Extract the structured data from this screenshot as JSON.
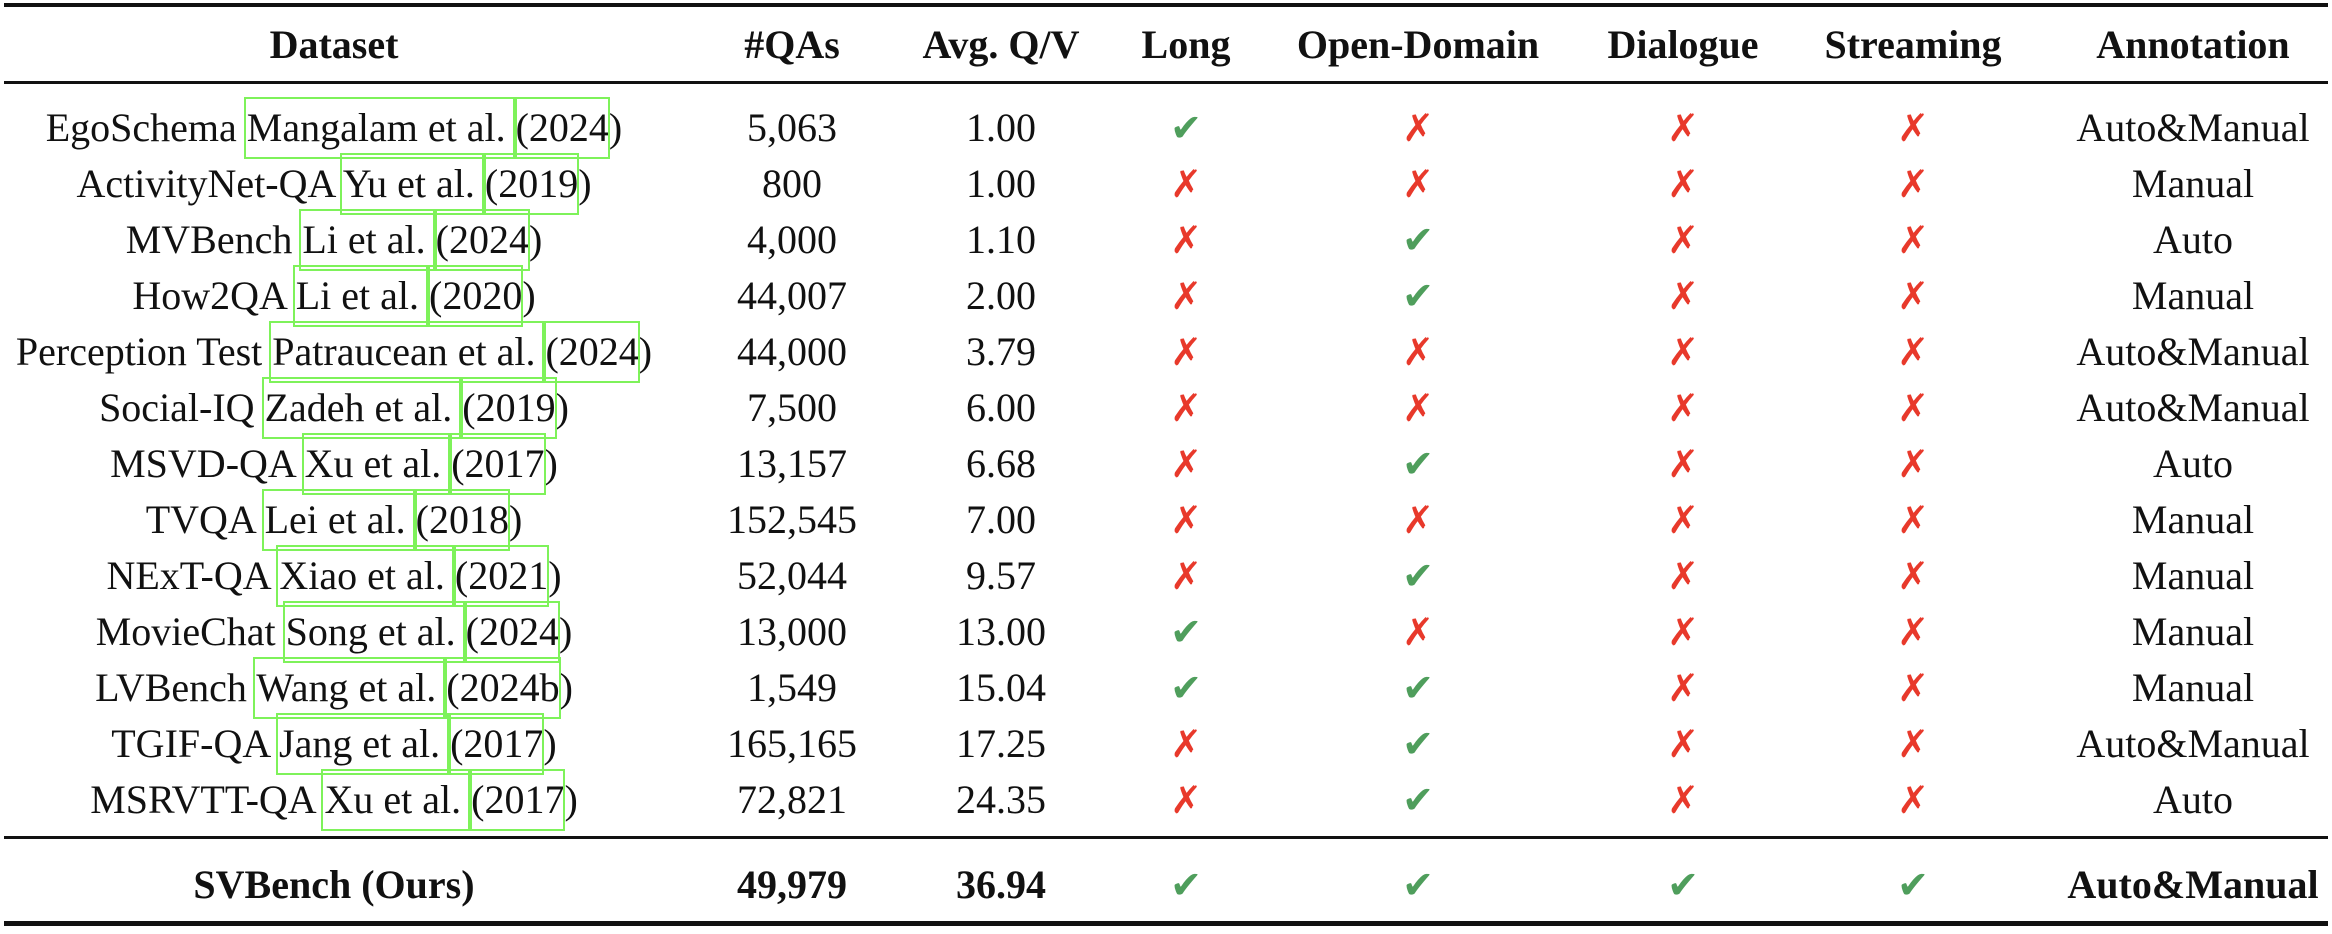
{
  "columns": [
    "Dataset",
    "#QAs",
    "Avg. Q/V",
    "Long",
    "Open-Domain",
    "Dialogue",
    "Streaming",
    "Annotation"
  ],
  "icons": {
    "check": "✔",
    "cross": "✗",
    "check_color": "#4f9e5c",
    "cross_color": "#e8392b",
    "citation_box_color": "#7ef25a"
  },
  "rows": [
    {
      "dataset": "EgoSchema",
      "author": "Mangalam et al.",
      "year": "2024",
      "qas": "5,063",
      "avg_qv": "1.00",
      "long": true,
      "open_domain": false,
      "dialogue": false,
      "streaming": false,
      "annotation": "Auto&Manual"
    },
    {
      "dataset": "ActivityNet-QA",
      "author": "Yu et al.",
      "year": "2019",
      "qas": "800",
      "avg_qv": "1.00",
      "long": false,
      "open_domain": false,
      "dialogue": false,
      "streaming": false,
      "annotation": "Manual"
    },
    {
      "dataset": "MVBench",
      "author": "Li et al.",
      "year": "2024",
      "qas": "4,000",
      "avg_qv": "1.10",
      "long": false,
      "open_domain": true,
      "dialogue": false,
      "streaming": false,
      "annotation": "Auto"
    },
    {
      "dataset": "How2QA",
      "author": "Li et al.",
      "year": "2020",
      "qas": "44,007",
      "avg_qv": "2.00",
      "long": false,
      "open_domain": true,
      "dialogue": false,
      "streaming": false,
      "annotation": "Manual"
    },
    {
      "dataset": "Perception Test",
      "author": "Patraucean et al.",
      "year": "2024",
      "qas": "44,000",
      "avg_qv": "3.79",
      "long": false,
      "open_domain": false,
      "dialogue": false,
      "streaming": false,
      "annotation": "Auto&Manual"
    },
    {
      "dataset": "Social-IQ",
      "author": "Zadeh et al.",
      "year": "2019",
      "qas": "7,500",
      "avg_qv": "6.00",
      "long": false,
      "open_domain": false,
      "dialogue": false,
      "streaming": false,
      "annotation": "Auto&Manual"
    },
    {
      "dataset": "MSVD-QA",
      "author": "Xu et al.",
      "year": "2017",
      "qas": "13,157",
      "avg_qv": "6.68",
      "long": false,
      "open_domain": true,
      "dialogue": false,
      "streaming": false,
      "annotation": "Auto"
    },
    {
      "dataset": "TVQA",
      "author": "Lei et al.",
      "year": "2018",
      "qas": "152,545",
      "avg_qv": "7.00",
      "long": false,
      "open_domain": false,
      "dialogue": false,
      "streaming": false,
      "annotation": "Manual"
    },
    {
      "dataset": "NExT-QA",
      "author": "Xiao et al.",
      "year": "2021",
      "qas": "52,044",
      "avg_qv": "9.57",
      "long": false,
      "open_domain": true,
      "dialogue": false,
      "streaming": false,
      "annotation": "Manual"
    },
    {
      "dataset": "MovieChat",
      "author": "Song et al.",
      "year": "2024",
      "qas": "13,000",
      "avg_qv": "13.00",
      "long": true,
      "open_domain": false,
      "dialogue": false,
      "streaming": false,
      "annotation": "Manual"
    },
    {
      "dataset": "LVBench",
      "author": "Wang et al.",
      "year": "2024b",
      "qas": "1,549",
      "avg_qv": "15.04",
      "long": true,
      "open_domain": true,
      "dialogue": false,
      "streaming": false,
      "annotation": "Manual"
    },
    {
      "dataset": "TGIF-QA",
      "author": "Jang et al.",
      "year": "2017",
      "qas": "165,165",
      "avg_qv": "17.25",
      "long": false,
      "open_domain": true,
      "dialogue": false,
      "streaming": false,
      "annotation": "Auto&Manual"
    },
    {
      "dataset": "MSRVTT-QA",
      "author": "Xu et al.",
      "year": "2017",
      "qas": "72,821",
      "avg_qv": "24.35",
      "long": false,
      "open_domain": true,
      "dialogue": false,
      "streaming": false,
      "annotation": "Auto"
    }
  ],
  "ours": {
    "dataset": "SVBench (Ours)",
    "qas": "49,979",
    "avg_qv": "36.94",
    "long": true,
    "open_domain": true,
    "dialogue": true,
    "streaming": true,
    "annotation": "Auto&Manual"
  }
}
